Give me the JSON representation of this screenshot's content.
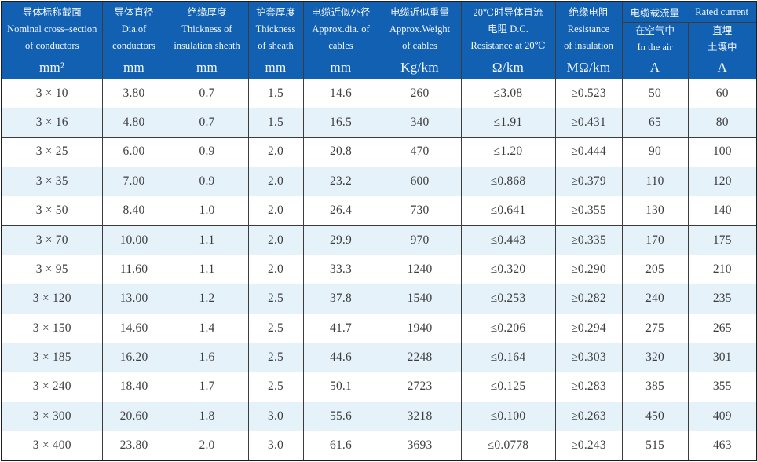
{
  "table": {
    "headers": [
      {
        "lines": [
          "导体标称截面",
          "Nominal cross–section",
          "of conductors"
        ]
      },
      {
        "lines": [
          "导体直径",
          "Dia.of",
          "conductors"
        ]
      },
      {
        "lines": [
          "绝缘厚度",
          "Thickness of",
          "insulation sheath"
        ]
      },
      {
        "lines": [
          "护套厚度",
          "Thickness",
          "of sheath"
        ]
      },
      {
        "lines": [
          "电缆近似外径",
          "Approx.dia. of",
          "cables"
        ]
      },
      {
        "lines": [
          "电缆近似重量",
          "Approx.Weight",
          "of cables"
        ]
      },
      {
        "lines": [
          "20℃时导体直流",
          "电阻 D.C.",
          "Resistance at 20℃"
        ]
      },
      {
        "lines": [
          "绝缘电阻",
          "Resistance",
          "of insulation"
        ]
      }
    ],
    "current_group": {
      "zh": "电缆载流量",
      "en": "Rated current",
      "sub_headers": [
        {
          "lines": [
            "在空气中",
            "In the air"
          ]
        },
        {
          "lines": [
            "直埋",
            "土壤中"
          ]
        }
      ]
    },
    "units": [
      "mm²",
      "mm",
      "mm",
      "mm",
      "mm",
      "Kg/km",
      "Ω/km",
      "MΩ/km",
      "A",
      "A"
    ],
    "rows": [
      [
        "3 × 10",
        "3.80",
        "0.7",
        "1.5",
        "14.6",
        "260",
        "≤3.08",
        "≥0.523",
        "50",
        "60"
      ],
      [
        "3 × 16",
        "4.80",
        "0.7",
        "1.5",
        "16.5",
        "340",
        "≤1.91",
        "≥0.431",
        "65",
        "80"
      ],
      [
        "3 × 25",
        "6.00",
        "0.9",
        "2.0",
        "20.8",
        "470",
        "≤1.20",
        "≥0.444",
        "90",
        "100"
      ],
      [
        "3 × 35",
        "7.00",
        "0.9",
        "2.0",
        "23.2",
        "600",
        "≤0.868",
        "≥0.379",
        "110",
        "120"
      ],
      [
        "3 × 50",
        "8.40",
        "1.0",
        "2.0",
        "26.4",
        "730",
        "≤0.641",
        "≥0.355",
        "130",
        "140"
      ],
      [
        "3 × 70",
        "10.00",
        "1.1",
        "2.0",
        "29.9",
        "970",
        "≤0.443",
        "≥0.335",
        "170",
        "175"
      ],
      [
        "3 × 95",
        "11.60",
        "1.1",
        "2.0",
        "33.3",
        "1240",
        "≤0.320",
        "≥0.290",
        "205",
        "210"
      ],
      [
        "3 × 120",
        "13.00",
        "1.2",
        "2.5",
        "37.8",
        "1540",
        "≤0.253",
        "≥0.282",
        "240",
        "235"
      ],
      [
        "3 × 150",
        "14.60",
        "1.4",
        "2.5",
        "41.7",
        "1940",
        "≤0.206",
        "≥0.294",
        "275",
        "265"
      ],
      [
        "3 × 185",
        "16.20",
        "1.6",
        "2.5",
        "44.6",
        "2248",
        "≤0.164",
        "≥0.303",
        "320",
        "301"
      ],
      [
        "3 × 240",
        "18.40",
        "1.7",
        "2.5",
        "50.1",
        "2723",
        "≤0.125",
        "≥0.283",
        "385",
        "355"
      ],
      [
        "3 × 300",
        "20.60",
        "1.8",
        "3.0",
        "55.6",
        "3218",
        "≤0.100",
        "≥0.263",
        "450",
        "409"
      ],
      [
        "3 × 400",
        "23.80",
        "2.0",
        "3.0",
        "61.6",
        "3693",
        "≤0.0778",
        "≥0.243",
        "515",
        "463"
      ]
    ]
  },
  "colors": {
    "header_bg": "#1160b2",
    "header_text": "#f2f7fd",
    "row_alt_bg": "#e6f2fa",
    "grid_line": "#3c3c3c",
    "data_text": "#3d3d3d"
  }
}
